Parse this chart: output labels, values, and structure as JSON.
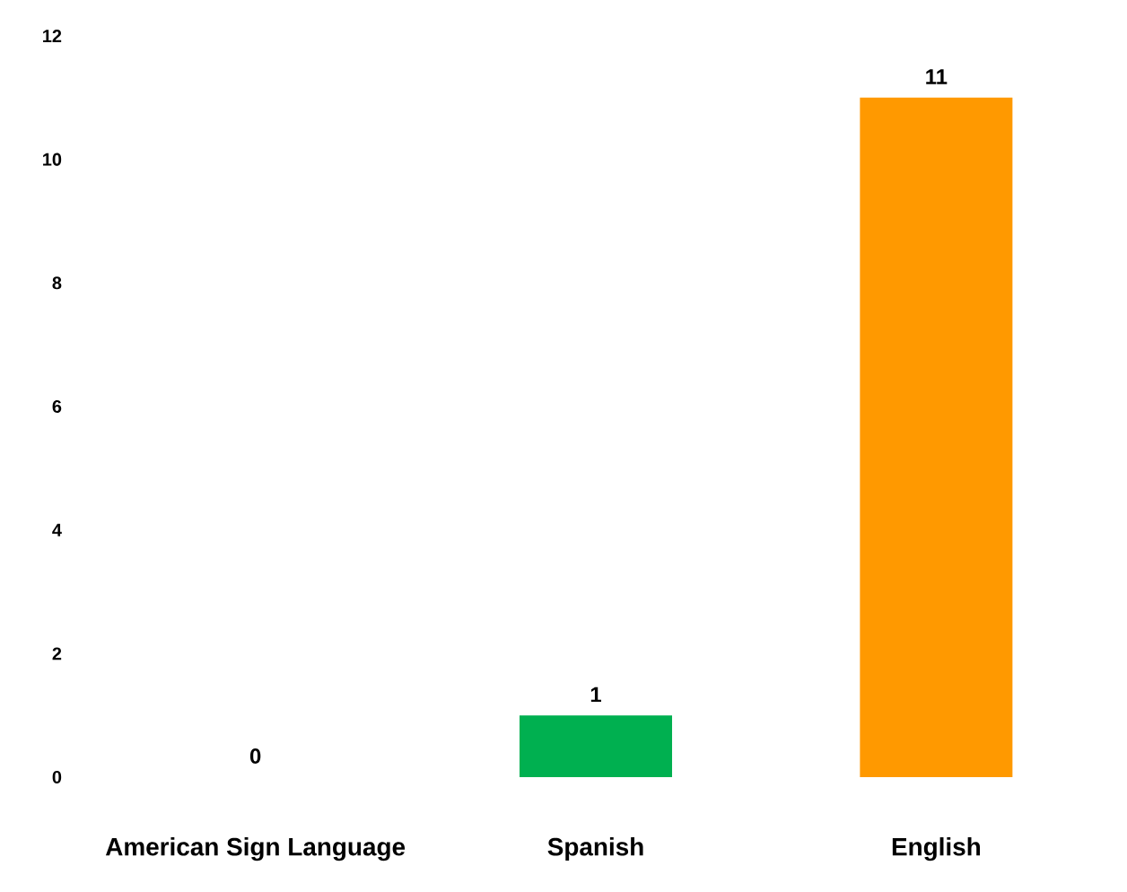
{
  "chart_data": {
    "type": "bar",
    "categories": [
      "American Sign Language",
      "Spanish",
      "English"
    ],
    "values": [
      0,
      1,
      11
    ],
    "colors": [
      "#00b050",
      "#00b050",
      "#ff9900"
    ],
    "value_labels": [
      "0",
      "1",
      "11"
    ],
    "ylim": [
      0,
      12
    ],
    "yticks": [
      0,
      2,
      4,
      6,
      8,
      10,
      12
    ]
  }
}
